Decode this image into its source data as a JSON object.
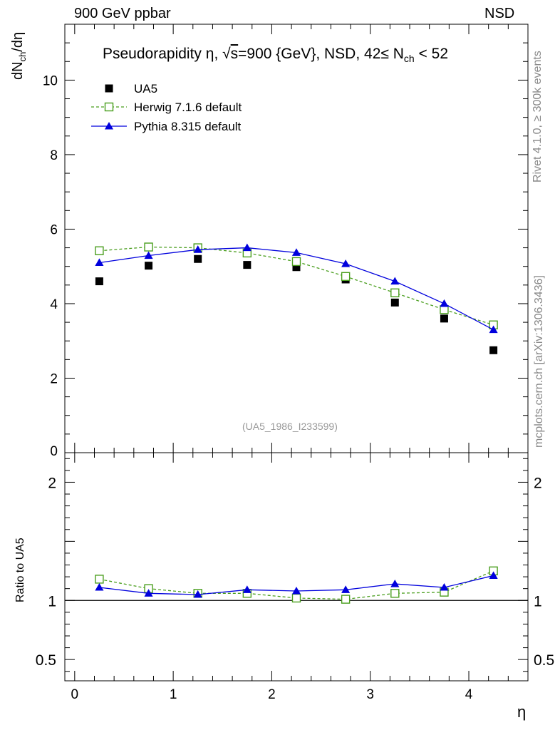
{
  "header": {
    "left": "900 GeV ppbar",
    "right": "NSD"
  },
  "side_labels": {
    "rivet": "Rivet 4.1.0, ≥ 300k events",
    "mcplots": "mcplots.cern.ch [arXiv:1306.3436]"
  },
  "colors": {
    "data": "#000000",
    "herwig": "#4a9e1e",
    "pythia": "#0000dd",
    "watermark": "#999999"
  },
  "chart_data": [
    {
      "type": "scatter",
      "panel": "main",
      "title_parts": {
        "prefix": "Pseudorapidity",
        "eta": "η",
        "sqrt": "√",
        "s": "s",
        "energy": "=900 {GeV}, NSD, 42≤ N",
        "sub": "ch",
        "suffix": " < 52"
      },
      "ylabel": {
        "main": "dN",
        "sub": "ch",
        "tail": "/dη"
      },
      "xlabel": "η",
      "xlim": [
        -0.1,
        4.6
      ],
      "ylim": [
        0,
        11.5
      ],
      "yticks": [
        0,
        2,
        4,
        6,
        8,
        10
      ],
      "ytick_labels": [
        "0",
        "2",
        "4",
        "6",
        "8",
        "10"
      ],
      "watermark": "(UA5_1986_I233599)",
      "x": [
        0.25,
        0.75,
        1.25,
        1.75,
        2.25,
        2.75,
        3.25,
        3.75,
        4.25
      ],
      "series": [
        {
          "name": "UA5",
          "style": "data",
          "values": [
            4.6,
            5.02,
            5.2,
            5.04,
            4.98,
            4.65,
            4.03,
            3.6,
            2.75
          ]
        },
        {
          "name": "Herwig 7.1.6 default",
          "style": "herwig",
          "values": [
            5.42,
            5.52,
            5.5,
            5.36,
            5.13,
            4.73,
            4.29,
            3.84,
            3.43
          ]
        },
        {
          "name": "Pythia 8.315 default",
          "style": "pythia",
          "values": [
            5.1,
            5.29,
            5.45,
            5.5,
            5.37,
            5.07,
            4.6,
            4.0,
            3.3
          ]
        }
      ]
    },
    {
      "type": "line",
      "panel": "ratio",
      "ylabel": "Ratio to UA5",
      "xlabel": "η",
      "xlim": [
        -0.1,
        4.6
      ],
      "ylim": [
        0.32,
        2.25
      ],
      "yticks": [
        0.5,
        1,
        2
      ],
      "ytick_labels": [
        "0.5",
        "1",
        "2"
      ],
      "xticks": [
        0,
        1,
        2,
        3,
        4
      ],
      "xtick_labels": [
        "0",
        "1",
        "2",
        "3",
        "4"
      ],
      "x": [
        0.25,
        0.75,
        1.25,
        1.75,
        2.25,
        2.75,
        3.25,
        3.75,
        4.25
      ],
      "series": [
        {
          "name": "Herwig 7.1.6 default",
          "style": "herwig",
          "values": [
            1.18,
            1.1,
            1.06,
            1.06,
            1.02,
            1.01,
            1.06,
            1.07,
            1.25
          ]
        },
        {
          "name": "Pythia 8.315 default",
          "style": "pythia",
          "values": [
            1.11,
            1.06,
            1.05,
            1.09,
            1.08,
            1.09,
            1.14,
            1.11,
            1.21
          ]
        }
      ]
    }
  ]
}
